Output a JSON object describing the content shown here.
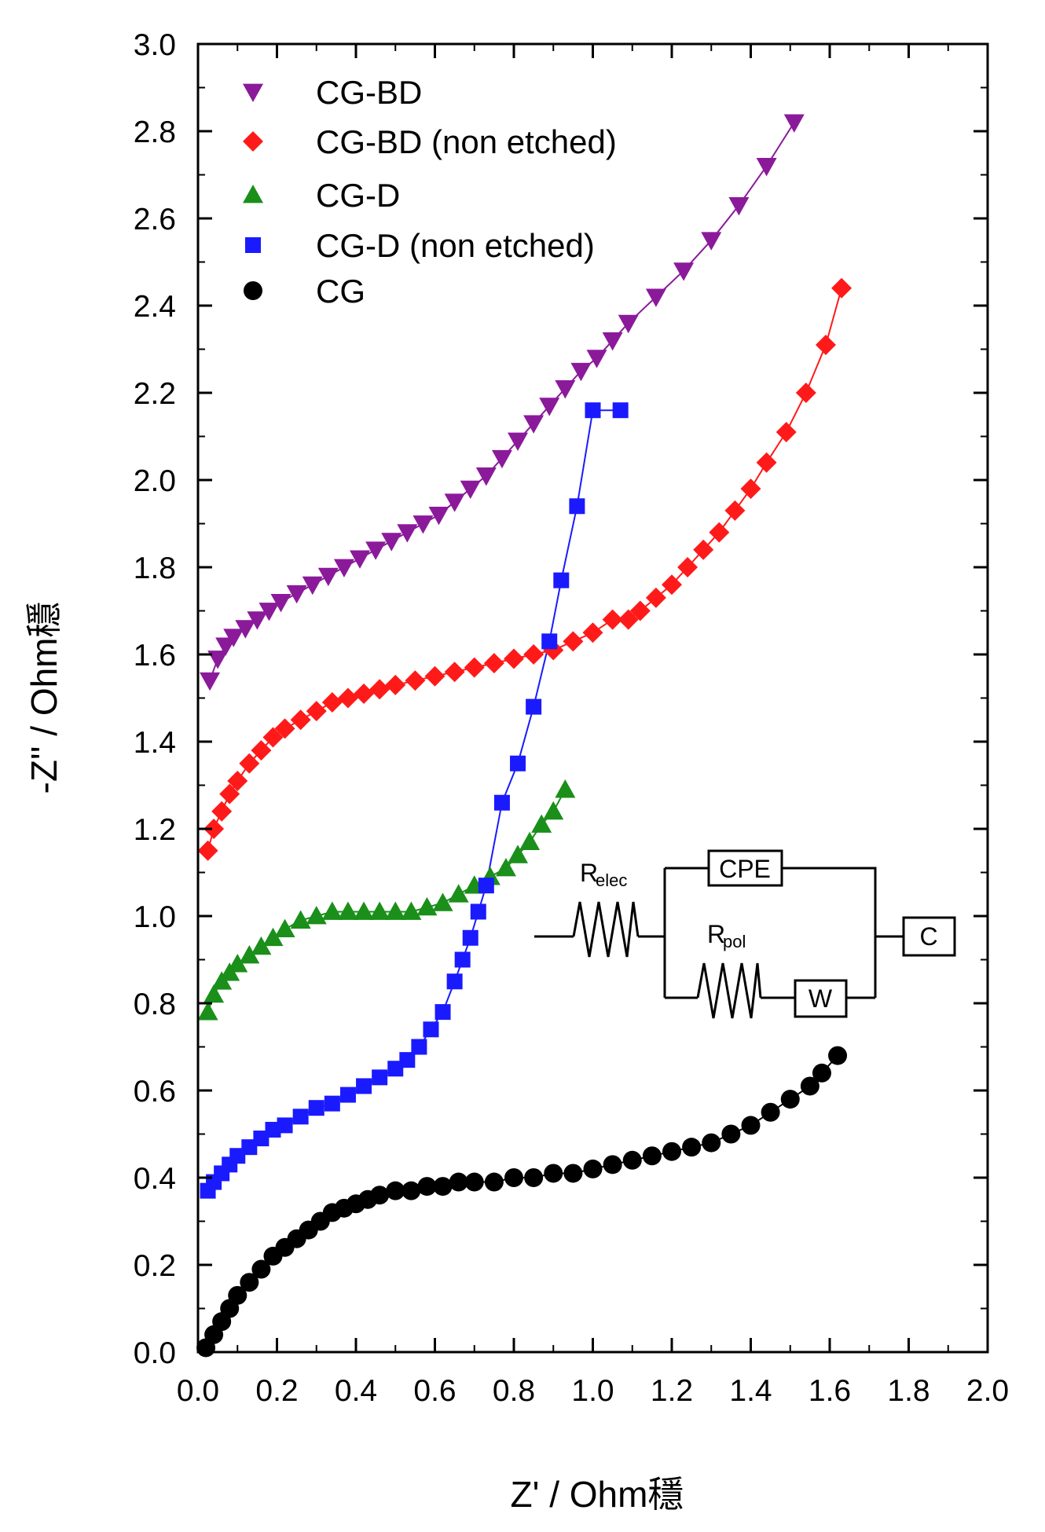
{
  "chart_data": {
    "type": "scatter",
    "title": "",
    "xlabel": "Z' / Ohm穩",
    "ylabel": "-Z'' / Ohm穩",
    "xlim": [
      0.0,
      2.0
    ],
    "ylim": [
      0.0,
      3.0
    ],
    "xticks": [
      "0.0",
      "0.2",
      "0.4",
      "0.6",
      "0.8",
      "1.0",
      "1.2",
      "1.4",
      "1.6",
      "1.8",
      "2.0"
    ],
    "yticks": [
      "0.0",
      "0.2",
      "0.4",
      "0.6",
      "0.8",
      "1.0",
      "1.2",
      "1.4",
      "1.6",
      "1.8",
      "2.0",
      "2.2",
      "2.4",
      "2.6",
      "2.8",
      "3.0"
    ],
    "grid": false,
    "legend_position": "top-left",
    "series": [
      {
        "name": "CG-BD",
        "marker": "triangle-down",
        "color": "#8b1a9b",
        "x": [
          0.03,
          0.05,
          0.07,
          0.09,
          0.12,
          0.15,
          0.18,
          0.21,
          0.25,
          0.29,
          0.33,
          0.37,
          0.41,
          0.45,
          0.49,
          0.53,
          0.57,
          0.61,
          0.65,
          0.69,
          0.73,
          0.77,
          0.81,
          0.85,
          0.89,
          0.93,
          0.97,
          1.01,
          1.05,
          1.09,
          1.16,
          1.23,
          1.3,
          1.37,
          1.44,
          1.51
        ],
        "y": [
          1.54,
          1.59,
          1.62,
          1.64,
          1.66,
          1.68,
          1.7,
          1.72,
          1.74,
          1.76,
          1.78,
          1.8,
          1.82,
          1.84,
          1.86,
          1.88,
          1.9,
          1.92,
          1.95,
          1.98,
          2.01,
          2.05,
          2.09,
          2.13,
          2.17,
          2.21,
          2.25,
          2.28,
          2.32,
          2.36,
          2.42,
          2.48,
          2.55,
          2.63,
          2.72,
          2.82
        ]
      },
      {
        "name": "CG-BD (non etched)",
        "color": "#ff1a1a",
        "marker": "diamond",
        "x": [
          0.025,
          0.04,
          0.06,
          0.08,
          0.1,
          0.13,
          0.16,
          0.19,
          0.22,
          0.26,
          0.3,
          0.34,
          0.38,
          0.42,
          0.46,
          0.5,
          0.55,
          0.6,
          0.65,
          0.7,
          0.75,
          0.8,
          0.85,
          0.9,
          0.95,
          1.0,
          1.05,
          1.09,
          1.12,
          1.16,
          1.2,
          1.24,
          1.28,
          1.32,
          1.36,
          1.4,
          1.44,
          1.49,
          1.54,
          1.59,
          1.63
        ],
        "y": [
          1.15,
          1.2,
          1.24,
          1.28,
          1.31,
          1.35,
          1.38,
          1.41,
          1.43,
          1.45,
          1.47,
          1.49,
          1.5,
          1.51,
          1.52,
          1.53,
          1.54,
          1.55,
          1.56,
          1.57,
          1.58,
          1.59,
          1.6,
          1.61,
          1.63,
          1.65,
          1.68,
          1.68,
          1.7,
          1.73,
          1.76,
          1.8,
          1.84,
          1.88,
          1.93,
          1.98,
          2.04,
          2.11,
          2.2,
          2.31,
          2.44
        ]
      },
      {
        "name": "CG-D",
        "color": "#1a8f1a",
        "marker": "triangle-up",
        "x": [
          0.025,
          0.04,
          0.06,
          0.08,
          0.1,
          0.13,
          0.16,
          0.19,
          0.22,
          0.26,
          0.3,
          0.34,
          0.38,
          0.42,
          0.46,
          0.5,
          0.54,
          0.58,
          0.62,
          0.66,
          0.7,
          0.74,
          0.78,
          0.81,
          0.84,
          0.87,
          0.9,
          0.93
        ],
        "y": [
          0.78,
          0.82,
          0.85,
          0.87,
          0.89,
          0.91,
          0.93,
          0.95,
          0.97,
          0.99,
          1.0,
          1.01,
          1.01,
          1.01,
          1.01,
          1.01,
          1.01,
          1.02,
          1.03,
          1.05,
          1.07,
          1.09,
          1.11,
          1.14,
          1.17,
          1.21,
          1.24,
          1.29
        ]
      },
      {
        "name": "CG-D (non etched)",
        "color": "#1a1aff",
        "marker": "square",
        "x": [
          0.025,
          0.04,
          0.06,
          0.08,
          0.1,
          0.13,
          0.16,
          0.19,
          0.22,
          0.26,
          0.3,
          0.34,
          0.38,
          0.42,
          0.46,
          0.5,
          0.53,
          0.56,
          0.59,
          0.62,
          0.65,
          0.67,
          0.69,
          0.71,
          0.73,
          0.77,
          0.81,
          0.85,
          0.89,
          0.92,
          0.96,
          1.0,
          1.07
        ],
        "y": [
          0.37,
          0.39,
          0.41,
          0.43,
          0.45,
          0.47,
          0.49,
          0.51,
          0.52,
          0.54,
          0.56,
          0.57,
          0.59,
          0.61,
          0.63,
          0.65,
          0.67,
          0.7,
          0.74,
          0.78,
          0.85,
          0.9,
          0.95,
          1.01,
          1.07,
          1.26,
          1.35,
          1.48,
          1.63,
          1.77,
          1.94,
          2.16,
          2.16
        ]
      },
      {
        "name": "CG",
        "color": "#000000",
        "marker": "circle",
        "x": [
          0.02,
          0.04,
          0.06,
          0.08,
          0.1,
          0.13,
          0.16,
          0.19,
          0.22,
          0.25,
          0.28,
          0.31,
          0.34,
          0.37,
          0.4,
          0.43,
          0.46,
          0.5,
          0.54,
          0.58,
          0.62,
          0.66,
          0.7,
          0.75,
          0.8,
          0.85,
          0.9,
          0.95,
          1.0,
          1.05,
          1.1,
          1.15,
          1.2,
          1.25,
          1.3,
          1.35,
          1.4,
          1.45,
          1.5,
          1.55,
          1.58,
          1.62
        ],
        "y": [
          0.01,
          0.04,
          0.07,
          0.1,
          0.13,
          0.16,
          0.19,
          0.22,
          0.24,
          0.26,
          0.28,
          0.3,
          0.32,
          0.33,
          0.34,
          0.35,
          0.36,
          0.37,
          0.37,
          0.38,
          0.38,
          0.39,
          0.39,
          0.39,
          0.4,
          0.4,
          0.41,
          0.41,
          0.42,
          0.43,
          0.44,
          0.45,
          0.46,
          0.47,
          0.48,
          0.5,
          0.52,
          0.55,
          0.58,
          0.61,
          0.64,
          0.68
        ]
      }
    ]
  },
  "circuit": {
    "r_elec_main": "R",
    "r_elec_sub": "elec",
    "cpe": "CPE",
    "r_pol_main": "R",
    "r_pol_sub": "pol",
    "w": "W",
    "c": "C"
  }
}
